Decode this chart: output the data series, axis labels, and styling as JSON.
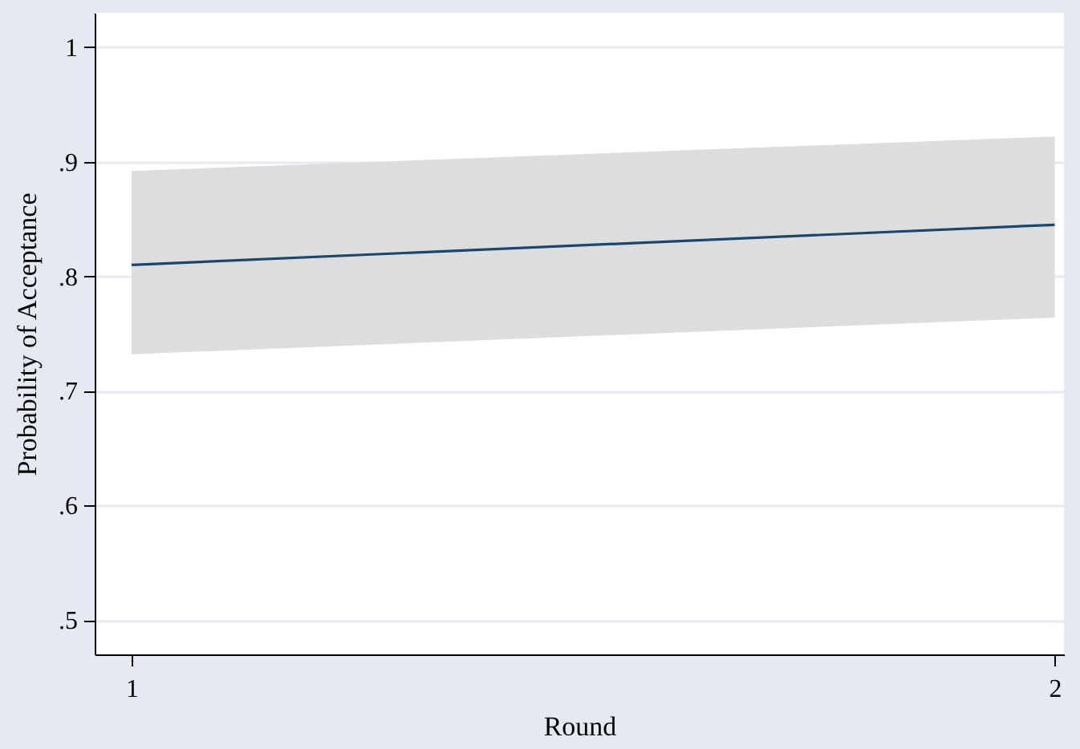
{
  "chart_data": {
    "type": "line",
    "xlabel": "Round",
    "ylabel": "Probability of Acceptance",
    "x": [
      1,
      2
    ],
    "series": [
      {
        "color": "#1a476f",
        "values": [
          0.81,
          0.845
        ],
        "lower": [
          0.732,
          0.764
        ],
        "upper": [
          0.892,
          0.922
        ]
      }
    ],
    "xlim": [
      0.96,
      2.01
    ],
    "xticks": [
      1,
      2
    ],
    "ylim": [
      0.47,
      1.03
    ],
    "yticks": [
      {
        "value": 0.5,
        "label": ".5"
      },
      {
        "value": 0.6,
        "label": ".6"
      },
      {
        "value": 0.7,
        "label": ".7"
      },
      {
        "value": 0.8,
        "label": ".8"
      },
      {
        "value": 0.9,
        "label": ".9"
      },
      {
        "value": 1,
        "label": "1"
      }
    ],
    "grid": "y",
    "marker": "none",
    "line_style": "solid"
  }
}
